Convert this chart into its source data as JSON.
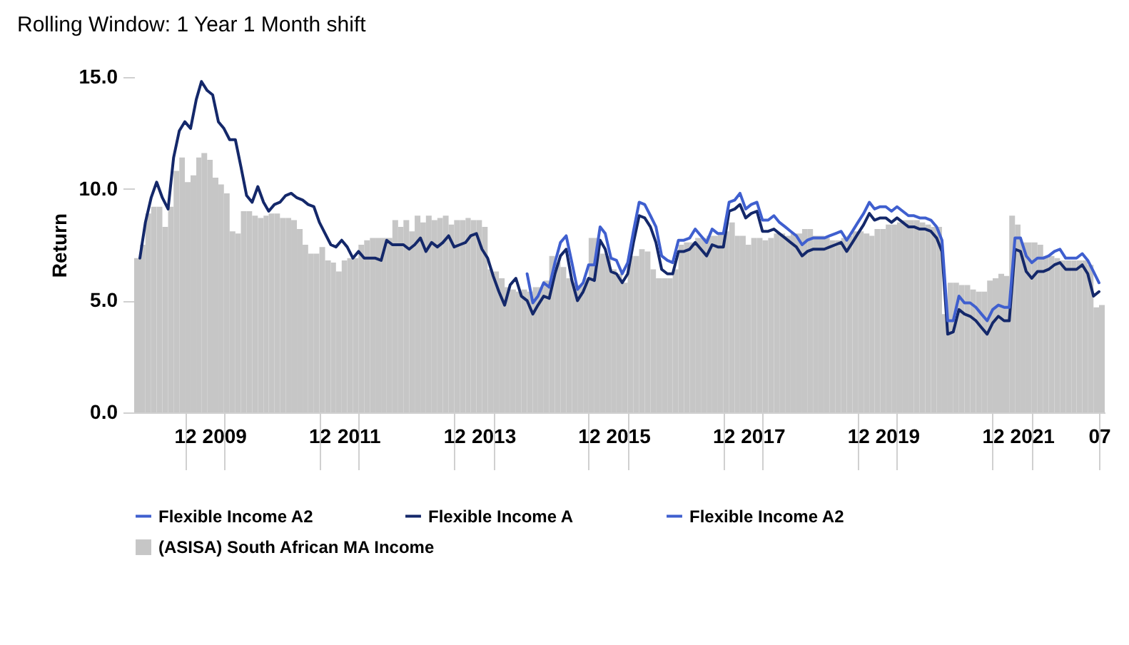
{
  "chart_data": {
    "type": "bar",
    "title": "Rolling Window: 1 Year 1 Month shift",
    "ylabel": "Return",
    "x": [
      "2008-03",
      "2008-04",
      "2008-05",
      "2008-06",
      "2008-07",
      "2008-08",
      "2008-09",
      "2008-10",
      "2008-11",
      "2008-12",
      "2009-01",
      "2009-02",
      "2009-03",
      "2009-04",
      "2009-05",
      "2009-06",
      "2009-07",
      "2009-08",
      "2009-09",
      "2009-10",
      "2009-11",
      "2009-12",
      "2010-01",
      "2010-02",
      "2010-03",
      "2010-04",
      "2010-05",
      "2010-06",
      "2010-07",
      "2010-08",
      "2010-09",
      "2010-10",
      "2010-11",
      "2010-12",
      "2011-01",
      "2011-02",
      "2011-03",
      "2011-04",
      "2011-05",
      "2011-06",
      "2011-07",
      "2011-08",
      "2011-09",
      "2011-10",
      "2011-11",
      "2011-12",
      "2012-01",
      "2012-02",
      "2012-03",
      "2012-04",
      "2012-05",
      "2012-06",
      "2012-07",
      "2012-08",
      "2012-09",
      "2012-10",
      "2012-11",
      "2012-12",
      "2013-01",
      "2013-02",
      "2013-03",
      "2013-04",
      "2013-05",
      "2013-06",
      "2013-07",
      "2013-08",
      "2013-09",
      "2013-10",
      "2013-11",
      "2013-12",
      "2014-01",
      "2014-02",
      "2014-03",
      "2014-04",
      "2014-05",
      "2014-06",
      "2014-07",
      "2014-08",
      "2014-09",
      "2014-10",
      "2014-11",
      "2014-12",
      "2015-01",
      "2015-02",
      "2015-03",
      "2015-04",
      "2015-05",
      "2015-06",
      "2015-07",
      "2015-08",
      "2015-09",
      "2015-10",
      "2015-11",
      "2015-12",
      "2016-01",
      "2016-02",
      "2016-03",
      "2016-04",
      "2016-05",
      "2016-06",
      "2016-07",
      "2016-08",
      "2016-09",
      "2016-10",
      "2016-11",
      "2016-12",
      "2017-01",
      "2017-02",
      "2017-03",
      "2017-04",
      "2017-05",
      "2017-06",
      "2017-07",
      "2017-08",
      "2017-09",
      "2017-10",
      "2017-11",
      "2017-12",
      "2018-01",
      "2018-02",
      "2018-03",
      "2018-04",
      "2018-05",
      "2018-06",
      "2018-07",
      "2018-08",
      "2018-09",
      "2018-10",
      "2018-11",
      "2018-12",
      "2019-01",
      "2019-02",
      "2019-03",
      "2019-04",
      "2019-05",
      "2019-06",
      "2019-07",
      "2019-08",
      "2019-09",
      "2019-10",
      "2019-11",
      "2019-12",
      "2020-01",
      "2020-02",
      "2020-03",
      "2020-04",
      "2020-05",
      "2020-06",
      "2020-07",
      "2020-08",
      "2020-09",
      "2020-10",
      "2020-11",
      "2020-12",
      "2021-01",
      "2021-02",
      "2021-03",
      "2021-04",
      "2021-05",
      "2021-06",
      "2021-07",
      "2021-08",
      "2021-09",
      "2021-10",
      "2021-11",
      "2021-12",
      "2022-01",
      "2022-02",
      "2022-03",
      "2022-04",
      "2022-05",
      "2022-06",
      "2022-07"
    ],
    "xlim": [
      "2008-03",
      "2022-08"
    ],
    "xticks": [
      {
        "value": "2008-12",
        "label": "12"
      },
      {
        "value": "2009-07",
        "label": "2009"
      },
      {
        "value": "2010-12",
        "label": "12"
      },
      {
        "value": "2011-07",
        "label": "2011"
      },
      {
        "value": "2012-12",
        "label": "12"
      },
      {
        "value": "2013-07",
        "label": "2013"
      },
      {
        "value": "2014-12",
        "label": "12"
      },
      {
        "value": "2015-07",
        "label": "2015"
      },
      {
        "value": "2016-12",
        "label": "12"
      },
      {
        "value": "2017-07",
        "label": "2017"
      },
      {
        "value": "2018-12",
        "label": "12"
      },
      {
        "value": "2019-07",
        "label": "2019"
      },
      {
        "value": "2020-12",
        "label": "12"
      },
      {
        "value": "2021-07",
        "label": "2021"
      },
      {
        "value": "2022-07",
        "label": "07"
      }
    ],
    "ylim": [
      0,
      15
    ],
    "yticks": [
      {
        "value": 0,
        "label": "0.0"
      },
      {
        "value": 5,
        "label": "5.0"
      },
      {
        "value": 10,
        "label": "10.0"
      },
      {
        "value": 15,
        "label": "15.0"
      }
    ],
    "legend": "bottom",
    "series": [
      {
        "name": "Flexible Income A2",
        "type": "line",
        "color": "#3f5fcf",
        "values": [
          null,
          null,
          null,
          null,
          null,
          null,
          null,
          null,
          null,
          null,
          null,
          null,
          null,
          null,
          null,
          null,
          null,
          null,
          null,
          null,
          null,
          null,
          null,
          null,
          null,
          null,
          null,
          null,
          null,
          null,
          null,
          null,
          null,
          null,
          null,
          null,
          null,
          null,
          null,
          null,
          null,
          null,
          null,
          null,
          null,
          null,
          null,
          null,
          null,
          null,
          null,
          null,
          null,
          null,
          null,
          null,
          null,
          null,
          null,
          null,
          null,
          null,
          null,
          null,
          null,
          null,
          null,
          null,
          null,
          null,
          null,
          null,
          null,
          null,
          null,
          null,
          null,
          null,
          null,
          null,
          null,
          null,
          null,
          null,
          null,
          null,
          null,
          null,
          null,
          null,
          null,
          null,
          null,
          null,
          null,
          null,
          null,
          null,
          null,
          null,
          null,
          null,
          null,
          null,
          null,
          null,
          null,
          null,
          null,
          null,
          null,
          null,
          null,
          null,
          null,
          null,
          null,
          null,
          null,
          null,
          null,
          null,
          null,
          null,
          null,
          null,
          null,
          null,
          null,
          null,
          null,
          null,
          null,
          null,
          null,
          null,
          null,
          null,
          null,
          null,
          null,
          null,
          null,
          null,
          null,
          null,
          null,
          null,
          null,
          null,
          null,
          null,
          null,
          null,
          null,
          null,
          null,
          null,
          null,
          null,
          null,
          null,
          null,
          null,
          null,
          null,
          null,
          null,
          null,
          null,
          null,
          null,
          null
        ]
      },
      {
        "name": "Flexible Income A",
        "type": "line",
        "color": "#14286a",
        "values": [
          null,
          6.9,
          8.5,
          9.6,
          10.3,
          9.6,
          9.1,
          11.4,
          12.6,
          13.0,
          12.7,
          14.0,
          14.8,
          14.4,
          14.2,
          13.0,
          12.7,
          12.2,
          12.2,
          11.0,
          9.7,
          9.4,
          10.1,
          9.4,
          9.0,
          9.3,
          9.4,
          9.7,
          9.8,
          9.6,
          9.5,
          9.3,
          9.2,
          8.5,
          8.0,
          7.5,
          7.4,
          7.7,
          7.4,
          6.9,
          7.2,
          6.9,
          6.9,
          6.9,
          6.8,
          7.7,
          7.5,
          7.5,
          7.5,
          7.3,
          7.5,
          7.8,
          7.2,
          7.6,
          7.4,
          7.6,
          7.9,
          7.4,
          7.5,
          7.6,
          7.9,
          8.0,
          7.3,
          6.9,
          6.1,
          5.4,
          4.8,
          5.7,
          6.0,
          5.2,
          5.0,
          4.4,
          4.8,
          5.2,
          5.1,
          6.2,
          7.0,
          7.3,
          5.9,
          5.0,
          5.4,
          6.0,
          5.9,
          7.7,
          7.3,
          6.3,
          6.2,
          5.8,
          6.2,
          7.6,
          8.8,
          8.7,
          8.3,
          7.6,
          6.4,
          6.2,
          6.2,
          7.2,
          7.2,
          7.3,
          7.6,
          7.3,
          7.0,
          7.5,
          7.4,
          7.4,
          9.0,
          9.1,
          9.3,
          8.7,
          8.9,
          9.0,
          8.1,
          8.1,
          8.2,
          8.0,
          7.8,
          7.6,
          7.4,
          7.0,
          7.2,
          7.3,
          7.3,
          7.3,
          7.4,
          7.5,
          7.6,
          7.2,
          7.6,
          8.0,
          8.4,
          8.9,
          8.6,
          8.7,
          8.7,
          8.5,
          8.7,
          8.5,
          8.3,
          8.3,
          8.2,
          8.2,
          8.1,
          7.8,
          7.2,
          3.5,
          3.6,
          4.6,
          4.4,
          4.3,
          4.1,
          3.8,
          3.5,
          4.0,
          4.3,
          4.1,
          4.1,
          7.3,
          7.2,
          6.3,
          6.0,
          6.3,
          6.3,
          6.4,
          6.6,
          6.7,
          6.4,
          6.4,
          6.4,
          6.6,
          6.2,
          5.2,
          5.4
        ]
      },
      {
        "name": "Flexible Income A2",
        "type": "line",
        "color": "#3f5fcf",
        "values": [
          null,
          null,
          null,
          null,
          null,
          null,
          null,
          null,
          null,
          null,
          null,
          null,
          null,
          null,
          null,
          null,
          null,
          null,
          null,
          null,
          null,
          null,
          null,
          null,
          null,
          null,
          null,
          null,
          null,
          null,
          null,
          null,
          null,
          null,
          null,
          null,
          null,
          null,
          null,
          null,
          null,
          null,
          null,
          null,
          null,
          null,
          null,
          null,
          null,
          null,
          null,
          null,
          null,
          null,
          null,
          null,
          null,
          null,
          null,
          null,
          null,
          null,
          null,
          null,
          null,
          null,
          null,
          null,
          null,
          null,
          6.2,
          4.9,
          5.2,
          5.8,
          5.6,
          6.7,
          7.6,
          7.9,
          6.7,
          5.5,
          5.8,
          6.6,
          6.6,
          8.3,
          8.0,
          6.9,
          6.8,
          6.2,
          6.7,
          8.1,
          9.4,
          9.3,
          8.8,
          8.3,
          7.0,
          6.8,
          6.7,
          7.7,
          7.7,
          7.8,
          8.2,
          7.9,
          7.6,
          8.2,
          8.0,
          8.0,
          9.4,
          9.5,
          9.8,
          9.1,
          9.3,
          9.4,
          8.6,
          8.6,
          8.8,
          8.5,
          8.3,
          8.1,
          7.9,
          7.5,
          7.7,
          7.8,
          7.8,
          7.8,
          7.9,
          8.0,
          8.1,
          7.7,
          8.1,
          8.5,
          8.9,
          9.4,
          9.1,
          9.2,
          9.2,
          9.0,
          9.2,
          9.0,
          8.8,
          8.8,
          8.7,
          8.7,
          8.6,
          8.3,
          7.7,
          4.1,
          4.1,
          5.2,
          4.9,
          4.9,
          4.7,
          4.4,
          4.1,
          4.6,
          4.8,
          4.7,
          4.7,
          7.8,
          7.8,
          7.0,
          6.7,
          6.9,
          6.9,
          7.0,
          7.2,
          7.3,
          6.9,
          6.9,
          6.9,
          7.1,
          6.8,
          6.3,
          5.8
        ]
      },
      {
        "name": "(ASISA) South African MA Income",
        "color": "#c6c6c6",
        "values": [
          6.9,
          7.5,
          8.9,
          9.2,
          9.2,
          8.3,
          9.2,
          10.8,
          11.4,
          10.3,
          10.6,
          11.4,
          11.6,
          11.3,
          10.5,
          10.2,
          9.8,
          8.1,
          8.0,
          9.0,
          9.0,
          8.8,
          8.7,
          8.8,
          8.9,
          8.9,
          8.7,
          8.7,
          8.6,
          8.2,
          7.5,
          7.1,
          7.1,
          7.4,
          6.8,
          6.7,
          6.3,
          6.8,
          6.9,
          6.9,
          7.5,
          7.7,
          7.8,
          7.8,
          7.8,
          7.8,
          8.6,
          8.3,
          8.6,
          8.1,
          8.8,
          8.5,
          8.8,
          8.6,
          8.7,
          8.8,
          8.4,
          8.6,
          8.6,
          8.7,
          8.6,
          8.6,
          8.3,
          6.4,
          6.3,
          6.0,
          5.6,
          5.5,
          5.4,
          5.5,
          5.4,
          5.6,
          5.6,
          5.9,
          7.0,
          6.7,
          6.5,
          6.0,
          5.8,
          5.7,
          6.0,
          7.8,
          7.8,
          7.1,
          7.0,
          6.4,
          6.2,
          5.8,
          7.0,
          7.0,
          7.3,
          7.2,
          6.4,
          6.0,
          6.0,
          6.0,
          6.4,
          7.5,
          7.6,
          7.6,
          7.8,
          7.8,
          7.9,
          7.9,
          8.0,
          8.1,
          8.5,
          7.9,
          7.9,
          7.5,
          7.8,
          7.8,
          7.7,
          7.8,
          8.0,
          8.0,
          7.9,
          8.0,
          8.0,
          8.2,
          8.2,
          7.9,
          7.9,
          7.8,
          7.7,
          7.7,
          7.8,
          7.9,
          8.1,
          8.1,
          8.0,
          7.9,
          8.2,
          8.2,
          8.4,
          8.4,
          8.5,
          8.6,
          8.6,
          8.6,
          8.5,
          8.4,
          8.3,
          8.3,
          4.4,
          5.8,
          5.8,
          5.7,
          5.7,
          5.5,
          5.4,
          5.4,
          5.9,
          6.0,
          6.2,
          6.1,
          8.8,
          8.4,
          7.6,
          7.6,
          7.6,
          7.5,
          7.0,
          7.0,
          6.9,
          6.8,
          6.8,
          6.8,
          6.8,
          6.8,
          6.6,
          4.7,
          4.8
        ]
      }
    ]
  }
}
